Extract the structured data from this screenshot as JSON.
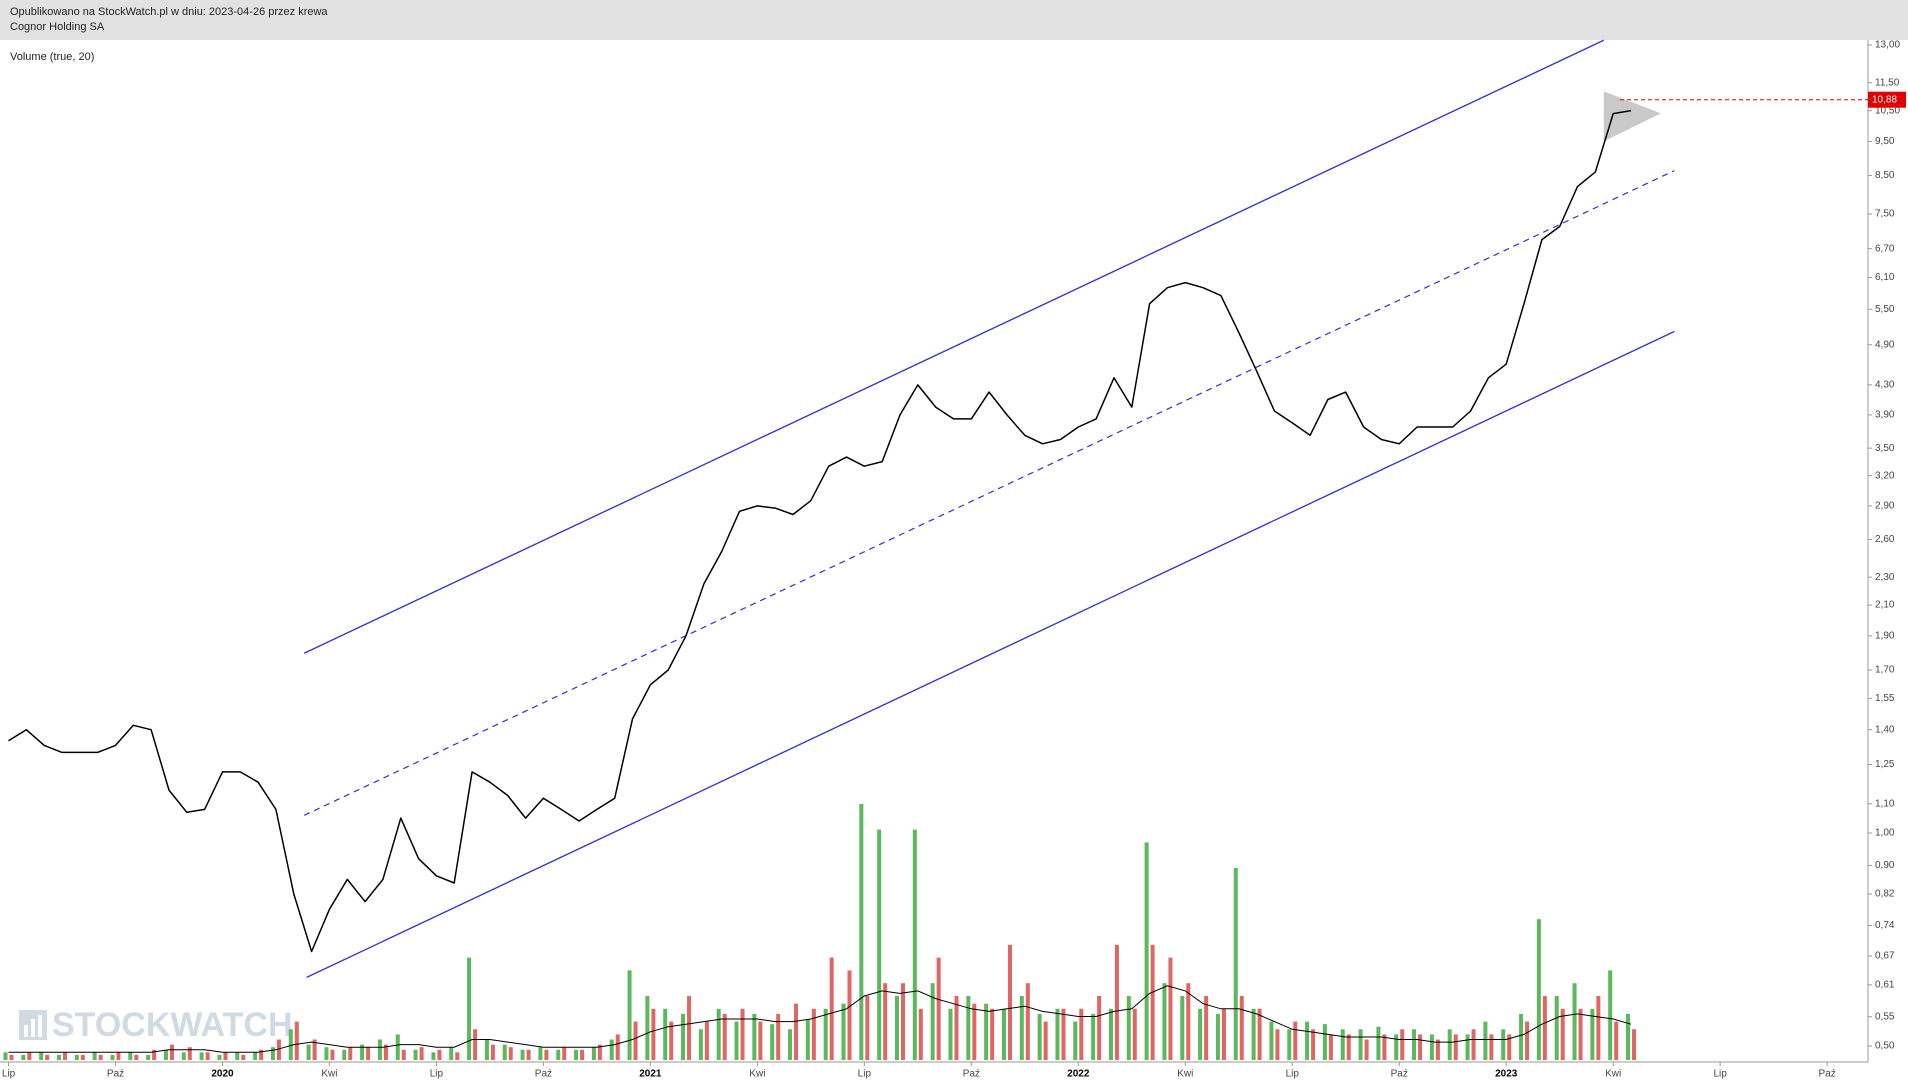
{
  "header": {
    "line1": "Opublikowano na StockWatch.pl w dniu: 2023-04-26 przez krewa",
    "line2": "Cognor Holding SA"
  },
  "watermark": "STOCKWATCH",
  "chart_data": {
    "type": "line",
    "log_scale": true,
    "color": "#000000",
    "categories": [
      "Lip",
      null,
      null,
      null,
      null,
      null,
      "Paź",
      null,
      null,
      null,
      null,
      null,
      "2020",
      null,
      null,
      null,
      null,
      null,
      "Kwi",
      null,
      null,
      null,
      null,
      null,
      "Lip",
      null,
      null,
      null,
      null,
      null,
      "Paź",
      null,
      null,
      null,
      null,
      null,
      "2021",
      null,
      null,
      null,
      null,
      null,
      "Kwi",
      null,
      null,
      null,
      null,
      null,
      "Lip",
      null,
      null,
      null,
      null,
      null,
      "Paź",
      null,
      null,
      null,
      null,
      null,
      "2022",
      null,
      null,
      null,
      null,
      null,
      "Kwi",
      null,
      null,
      null,
      null,
      null,
      "Lip",
      null,
      null,
      null,
      null,
      null,
      "Paź",
      null,
      null,
      null,
      null,
      null,
      "2023",
      null,
      null,
      null,
      null,
      null,
      "Kwi",
      null,
      null,
      null,
      null,
      null,
      "Lip",
      null,
      null,
      null,
      null,
      null,
      "Paź",
      null,
      null
    ],
    "values": [
      1.35,
      1.4,
      1.33,
      1.3,
      1.3,
      1.3,
      1.33,
      1.42,
      1.4,
      1.15,
      1.07,
      1.08,
      1.22,
      1.22,
      1.18,
      1.08,
      0.82,
      0.68,
      0.78,
      0.86,
      0.8,
      0.86,
      1.05,
      0.92,
      0.87,
      0.85,
      1.22,
      1.18,
      1.13,
      1.05,
      1.12,
      1.08,
      1.04,
      1.08,
      1.12,
      1.45,
      1.62,
      1.7,
      1.9,
      2.25,
      2.5,
      2.85,
      2.9,
      2.88,
      2.82,
      2.95,
      3.3,
      3.4,
      3.3,
      3.35,
      3.9,
      4.3,
      4.0,
      3.85,
      3.85,
      4.2,
      3.9,
      3.65,
      3.55,
      3.6,
      3.75,
      3.85,
      4.4,
      4.0,
      5.6,
      5.9,
      6.0,
      5.9,
      5.75,
      5.1,
      4.5,
      3.95,
      3.8,
      3.65,
      4.1,
      4.2,
      3.75,
      3.6,
      3.55,
      3.75,
      3.75,
      3.75,
      3.95,
      4.4,
      4.6,
      5.6,
      6.9,
      7.2,
      8.2,
      8.6,
      10.4,
      10.5,
      null,
      null,
      null,
      null,
      null,
      null,
      null,
      null,
      null,
      null,
      null,
      null,
      null
    ],
    "ylim": [
      0.5,
      13
    ],
    "yticks": [
      {
        "value": 13,
        "label": "13,00"
      },
      {
        "value": 11.5,
        "label": "11,50"
      },
      {
        "value": 10.5,
        "label": "10,50"
      },
      {
        "value": 9.5,
        "label": "9,50"
      },
      {
        "value": 8.5,
        "label": "8,50"
      },
      {
        "value": 7.5,
        "label": "7,50"
      },
      {
        "value": 6.7,
        "label": "6,70"
      },
      {
        "value": 6.1,
        "label": "6,10"
      },
      {
        "value": 5.5,
        "label": "5,50"
      },
      {
        "value": 4.9,
        "label": "4,90"
      },
      {
        "value": 4.3,
        "label": "4,30"
      },
      {
        "value": 3.9,
        "label": "3,90"
      },
      {
        "value": 3.5,
        "label": "3,50"
      },
      {
        "value": 3.2,
        "label": "3,20"
      },
      {
        "value": 2.9,
        "label": "2,90"
      },
      {
        "value": 2.6,
        "label": "2,60"
      },
      {
        "value": 2.3,
        "label": "2,30"
      },
      {
        "value": 2.1,
        "label": "2,10"
      },
      {
        "value": 1.9,
        "label": "1,90"
      },
      {
        "value": 1.7,
        "label": "1,70"
      },
      {
        "value": 1.55,
        "label": "1,55"
      },
      {
        "value": 1.4,
        "label": "1,40"
      },
      {
        "value": 1.25,
        "label": "1,25"
      },
      {
        "value": 1.1,
        "label": "1,10"
      },
      {
        "value": 1,
        "label": "1,00"
      },
      {
        "value": 0.9,
        "label": "0,90"
      },
      {
        "value": 0.82,
        "label": "0,82"
      },
      {
        "value": 0.74,
        "label": "0,74"
      },
      {
        "value": 0.67,
        "label": "0,67"
      },
      {
        "value": 0.61,
        "label": "0,61"
      },
      {
        "value": 0.55,
        "label": "0,55"
      },
      {
        "value": 0.5,
        "label": "0,50"
      }
    ],
    "last_value": 10.88,
    "last_value_label": "10,88",
    "volume": {
      "type": "bar",
      "title": "Volume (true, 20)",
      "ylim": [
        0,
        100
      ],
      "series": [
        {
          "color": "#5cb85c",
          "values": [
            3,
            2,
            3,
            2,
            2,
            3,
            2,
            3,
            2,
            4,
            3,
            3,
            2,
            3,
            3,
            5,
            12,
            6,
            5,
            4,
            6,
            8,
            10,
            4,
            3,
            5,
            40,
            8,
            6,
            4,
            5,
            4,
            4,
            5,
            8,
            35,
            25,
            20,
            18,
            12,
            20,
            15,
            18,
            14,
            12,
            16,
            20,
            22,
            100,
            90,
            25,
            90,
            30,
            20,
            25,
            22,
            20,
            25,
            18,
            20,
            15,
            18,
            20,
            25,
            85,
            30,
            25,
            20,
            18,
            75,
            20,
            15,
            12,
            15,
            14,
            12,
            12,
            13,
            10,
            12,
            10,
            12,
            10,
            15,
            12,
            18,
            55,
            25,
            30,
            20,
            35,
            18,
            null,
            null,
            null,
            null,
            null,
            null,
            null,
            null,
            null,
            null,
            null,
            null,
            null
          ]
        },
        {
          "color": "#e06666",
          "values": [
            2,
            3,
            2,
            3,
            2,
            2,
            3,
            2,
            4,
            6,
            5,
            3,
            3,
            2,
            4,
            8,
            15,
            8,
            4,
            5,
            5,
            6,
            4,
            5,
            4,
            3,
            12,
            6,
            5,
            4,
            4,
            5,
            4,
            6,
            10,
            15,
            20,
            15,
            25,
            15,
            18,
            20,
            15,
            18,
            22,
            20,
            40,
            35,
            25,
            30,
            30,
            20,
            40,
            25,
            22,
            20,
            45,
            30,
            15,
            20,
            20,
            25,
            45,
            20,
            45,
            40,
            30,
            25,
            20,
            25,
            20,
            12,
            15,
            12,
            10,
            10,
            8,
            10,
            12,
            10,
            8,
            10,
            12,
            10,
            10,
            15,
            25,
            20,
            20,
            25,
            15,
            12,
            null,
            null,
            null,
            null,
            null,
            null,
            null,
            null,
            null,
            null,
            null,
            null,
            null
          ]
        },
        {
          "type": "line",
          "color": "#000000",
          "values": [
            3,
            3,
            3,
            3,
            3,
            3,
            3,
            3,
            3,
            4,
            4,
            4,
            3,
            3,
            3,
            4,
            6,
            7,
            6,
            5,
            5,
            5,
            6,
            6,
            5,
            5,
            8,
            8,
            7,
            6,
            5,
            5,
            5,
            5,
            6,
            8,
            11,
            13,
            14,
            15,
            16,
            16,
            16,
            15,
            15,
            16,
            18,
            20,
            25,
            27,
            26,
            27,
            24,
            22,
            20,
            19,
            20,
            21,
            19,
            18,
            17,
            17,
            19,
            20,
            26,
            29,
            27,
            22,
            20,
            20,
            18,
            15,
            12,
            11,
            10,
            9,
            9,
            9,
            8,
            8,
            7,
            7,
            8,
            8,
            8,
            10,
            14,
            17,
            18,
            17,
            16,
            14,
            null,
            null,
            null,
            null,
            null,
            null,
            null,
            null,
            null,
            null,
            null,
            null,
            null
          ]
        }
      ]
    }
  }
}
